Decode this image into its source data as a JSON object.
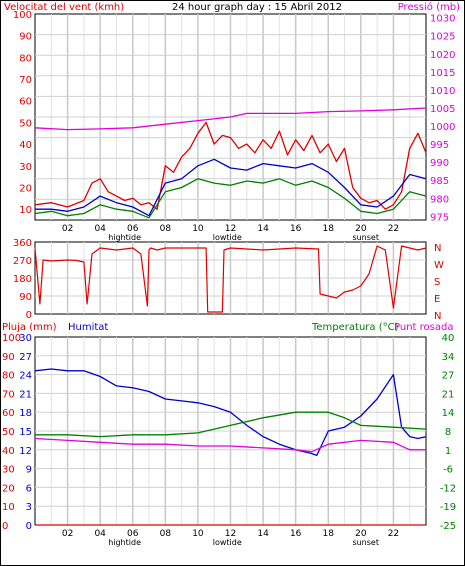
{
  "colors": {
    "red": "#e00000",
    "blue": "#0000cc",
    "green": "#008000",
    "magenta": "#e000e0",
    "grid": "#bdbdbd",
    "frame": "#000000"
  },
  "chart_data": [
    {
      "type": "line",
      "title": "24 hour graph day : 15 Abril 2012",
      "left_axis_title": "Velocitat del vent (kmh)",
      "right_axis_title": "Pressió (mb)",
      "xlim": [
        0,
        24
      ],
      "x_ticks": [
        "02",
        "04",
        "06",
        "08",
        "10",
        "12",
        "14",
        "16",
        "18",
        "20",
        "22",
        ""
      ],
      "x_markers": [
        {
          "label": "hightide",
          "x": 5.5
        },
        {
          "label": "lowtide",
          "x": 11.8
        },
        {
          "label": "sunset",
          "x": 20.3
        }
      ],
      "y_left": {
        "ylim": [
          5,
          100
        ],
        "ticks": [
          "10",
          "20",
          "30",
          "40",
          "50",
          "60",
          "70",
          "80",
          "90",
          "100"
        ]
      },
      "y_right": {
        "ylim": [
          974,
          1031
        ],
        "ticks": [
          "975",
          "980",
          "985",
          "990",
          "995",
          "1000",
          "1005",
          "1010",
          "1015",
          "1020",
          "1025",
          "1030"
        ]
      },
      "series": [
        {
          "color_key": "red",
          "axis": "left",
          "x": [
            0,
            1,
            2,
            3,
            3.5,
            4,
            4.5,
            5,
            5.5,
            6,
            6.5,
            7,
            7.5,
            8,
            8.5,
            9,
            9.5,
            10,
            10.5,
            11,
            11.5,
            12,
            12.5,
            13,
            13.5,
            14,
            14.5,
            15,
            15.5,
            16,
            16.5,
            17,
            17.5,
            18,
            18.5,
            19,
            19.5,
            20,
            20.5,
            21,
            21.5,
            22,
            22.5,
            23,
            23.5,
            24
          ],
          "y": [
            12,
            13,
            11,
            14,
            22,
            24,
            18,
            16,
            14,
            15,
            12,
            13,
            10,
            30,
            27,
            34,
            38,
            45,
            50,
            40,
            44,
            43,
            38,
            40,
            36,
            42,
            38,
            46,
            35,
            42,
            37,
            44,
            36,
            40,
            32,
            38,
            20,
            15,
            13,
            14,
            10,
            12,
            18,
            38,
            45,
            36
          ]
        },
        {
          "color_key": "blue",
          "axis": "left",
          "x": [
            0,
            1,
            2,
            3,
            4,
            5,
            6,
            7,
            8,
            9,
            10,
            11,
            12,
            13,
            14,
            15,
            16,
            17,
            18,
            19,
            20,
            21,
            22,
            23,
            24
          ],
          "y": [
            10,
            10,
            9,
            11,
            16,
            13,
            11,
            7,
            22,
            24,
            30,
            33,
            29,
            28,
            31,
            30,
            29,
            31,
            27,
            20,
            12,
            11,
            16,
            26,
            24
          ]
        },
        {
          "color_key": "green",
          "axis": "left",
          "x": [
            0,
            1,
            2,
            3,
            4,
            5,
            6,
            7,
            8,
            9,
            10,
            11,
            12,
            13,
            14,
            15,
            16,
            17,
            18,
            19,
            20,
            21,
            22,
            23,
            24
          ],
          "y": [
            8,
            9,
            7,
            8,
            12,
            10,
            9,
            6,
            18,
            20,
            24,
            22,
            21,
            23,
            22,
            24,
            21,
            23,
            20,
            15,
            9,
            8,
            10,
            18,
            16
          ]
        },
        {
          "color_key": "magenta",
          "axis": "right",
          "x": [
            0,
            2,
            4,
            6,
            8,
            10,
            12,
            13,
            14,
            16,
            18,
            20,
            22,
            24
          ],
          "y": [
            999.5,
            999.0,
            999.2,
            999.5,
            1000.5,
            1001.5,
            1002.5,
            1003.5,
            1003.5,
            1003.5,
            1004.0,
            1004.2,
            1004.5,
            1005.0
          ]
        }
      ]
    },
    {
      "type": "line",
      "title": "",
      "xlim": [
        0,
        24
      ],
      "y_left": {
        "ylim": [
          0,
          360
        ],
        "ticks": [
          "0",
          "90",
          "180",
          "270",
          "360"
        ]
      },
      "y_right_labels": [
        "N",
        "W",
        "S",
        "E",
        "N"
      ],
      "series": [
        {
          "color_key": "red",
          "axis": "left",
          "x": [
            0,
            0.3,
            0.5,
            1,
            2,
            2.5,
            3,
            3.2,
            3.5,
            4,
            5,
            6,
            6.5,
            6.9,
            7,
            7.1,
            7.5,
            8,
            9,
            10,
            10.5,
            10.6,
            11,
            11.5,
            11.6,
            12,
            14,
            16,
            17.4,
            17.5,
            18,
            18.5,
            19,
            19.5,
            20,
            20.5,
            21,
            21.5,
            22,
            22.5,
            23,
            23.5,
            24
          ],
          "y": [
            330,
            50,
            270,
            265,
            270,
            268,
            260,
            50,
            300,
            330,
            320,
            330,
            300,
            40,
            320,
            330,
            320,
            330,
            330,
            330,
            330,
            10,
            10,
            10,
            320,
            330,
            320,
            330,
            325,
            100,
            90,
            80,
            110,
            120,
            140,
            200,
            340,
            320,
            30,
            340,
            330,
            320,
            330
          ]
        }
      ]
    },
    {
      "type": "line",
      "left_axis_title": "Pluja (mm)",
      "left_axis_title2": "Humitat",
      "right_axis_title": "Temperatura (°C)",
      "right_axis_title2": "Punt rosada",
      "xlim": [
        0,
        24
      ],
      "y_left": {
        "ylim": [
          0,
          100
        ],
        "ticks": [
          "0",
          "10",
          "20",
          "30",
          "40",
          "50",
          "60",
          "70",
          "80",
          "90",
          "100"
        ]
      },
      "y_left2": {
        "ticks": [
          "0",
          "3",
          "6",
          "9",
          "12",
          "15",
          "18",
          "21",
          "24",
          "27",
          "30"
        ]
      },
      "y_right": {
        "ylim": [
          -25,
          40
        ],
        "ticks": [
          "-25",
          "-19",
          "-12",
          "-6",
          "1",
          "8",
          "14",
          "21",
          "27",
          "34",
          "40"
        ]
      },
      "x_ticks": [
        "02",
        "04",
        "06",
        "08",
        "10",
        "12",
        "14",
        "16",
        "18",
        "20",
        "22",
        ""
      ],
      "x_markers": [
        {
          "label": "hightide",
          "x": 5.5
        },
        {
          "label": "lowtide",
          "x": 11.8
        },
        {
          "label": "sunset",
          "x": 20.3
        }
      ],
      "series": [
        {
          "color_key": "blue",
          "axis": "left",
          "x": [
            0,
            1,
            2,
            3,
            4,
            5,
            6,
            7,
            8,
            9,
            10,
            11,
            12,
            13,
            14,
            15,
            16,
            17,
            17.3,
            18,
            19,
            20,
            21,
            22,
            22.5,
            23,
            23.5,
            24
          ],
          "y": [
            82,
            83,
            82,
            82,
            79,
            74,
            73,
            71,
            67,
            66,
            65,
            63,
            60,
            53,
            47,
            43,
            40,
            38,
            37,
            50,
            52,
            58,
            67,
            80,
            52,
            47,
            46,
            47
          ]
        },
        {
          "color_key": "green",
          "axis": "left",
          "x": [
            0,
            2,
            4,
            6,
            8,
            10,
            12,
            14,
            16,
            18,
            19,
            20,
            22,
            24
          ],
          "y": [
            48,
            48,
            47,
            48,
            48,
            49,
            53,
            57,
            60,
            60,
            57,
            53,
            52,
            51
          ]
        },
        {
          "color_key": "magenta",
          "axis": "left",
          "x": [
            0,
            2,
            4,
            6,
            8,
            10,
            12,
            14,
            16,
            17,
            18,
            20,
            22,
            23,
            24
          ],
          "y": [
            46,
            45,
            44,
            43,
            43,
            42,
            42,
            41,
            40,
            39,
            43,
            45,
            44,
            40,
            40
          ]
        },
        {
          "color_key": "red",
          "axis": "left",
          "x": [
            0,
            24
          ],
          "y": [
            0,
            0
          ]
        }
      ]
    }
  ]
}
